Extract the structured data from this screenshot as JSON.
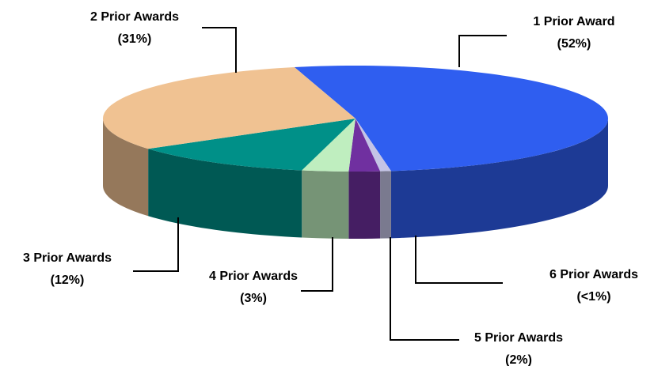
{
  "chart_data": {
    "type": "pie3d",
    "categories": [
      "1 Prior Award",
      "6 Prior Awards",
      "5 Prior Awards",
      "4 Prior Awards",
      "3 Prior Awards",
      "2 Prior Awards"
    ],
    "values": [
      52,
      0.7,
      2,
      3,
      12,
      31
    ],
    "value_labels": [
      "(52%)",
      "(<1%)",
      "(2%)",
      "(3%)",
      "(12%)",
      "(31%)"
    ],
    "colors": [
      "#2f5ef0",
      "#c4c4e6",
      "#7030a0",
      "#bfeebf",
      "#009088",
      "#f0c292"
    ]
  }
}
